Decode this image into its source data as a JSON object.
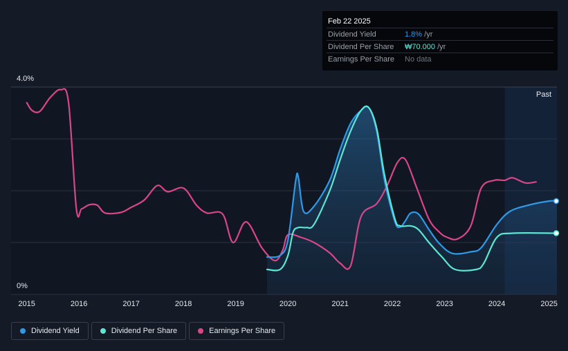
{
  "tooltip": {
    "date": "Feb 22 2025",
    "rows": [
      {
        "label": "Dividend Yield",
        "value": "1.8%",
        "unit": " /yr",
        "color": "#2f9ae8"
      },
      {
        "label": "Dividend Per Share",
        "value": "₩70.000",
        "unit": " /yr",
        "color": "#5ee6d3"
      },
      {
        "label": "Earnings Per Share",
        "value": "No data",
        "unit": "",
        "color": "#6f7680"
      }
    ]
  },
  "past_label": "Past",
  "legend": [
    {
      "label": "Dividend Yield",
      "color": "#2f9ae8"
    },
    {
      "label": "Dividend Per Share",
      "color": "#5ee6d3"
    },
    {
      "label": "Earnings Per Share",
      "color": "#d9468a"
    }
  ],
  "chart_data": {
    "type": "line",
    "ytick_labels": {
      "top": "4.0%",
      "bottom": "0%"
    },
    "ylim": [
      0,
      4.0
    ],
    "xlim": [
      2014.7,
      2025.15
    ],
    "x_ticks": [
      "2015",
      "2016",
      "2017",
      "2018",
      "2019",
      "2020",
      "2021",
      "2022",
      "2023",
      "2024",
      "2025"
    ],
    "past_start": 2024.15,
    "grid": true,
    "series": [
      {
        "name": "Dividend Yield",
        "color": "#2f9ae8",
        "filled": true,
        "points": [
          [
            2019.6,
            0.72
          ],
          [
            2019.85,
            0.75
          ],
          [
            2020.0,
            1.05
          ],
          [
            2020.15,
            2.2
          ],
          [
            2020.2,
            2.25
          ],
          [
            2020.3,
            1.6
          ],
          [
            2020.5,
            1.7
          ],
          [
            2020.8,
            2.2
          ],
          [
            2021.0,
            2.8
          ],
          [
            2021.2,
            3.3
          ],
          [
            2021.4,
            3.55
          ],
          [
            2021.55,
            3.6
          ],
          [
            2021.7,
            3.15
          ],
          [
            2021.85,
            2.2
          ],
          [
            2022.05,
            1.4
          ],
          [
            2022.15,
            1.3
          ],
          [
            2022.25,
            1.42
          ],
          [
            2022.35,
            1.57
          ],
          [
            2022.5,
            1.55
          ],
          [
            2022.7,
            1.25
          ],
          [
            2022.9,
            0.98
          ],
          [
            2023.15,
            0.79
          ],
          [
            2023.5,
            0.82
          ],
          [
            2023.7,
            0.9
          ],
          [
            2024.0,
            1.35
          ],
          [
            2024.25,
            1.6
          ],
          [
            2024.6,
            1.72
          ],
          [
            2025.0,
            1.8
          ],
          [
            2025.15,
            1.8
          ]
        ]
      },
      {
        "name": "Dividend Per Share",
        "color": "#5ee6d3",
        "filled": false,
        "points": [
          [
            2019.6,
            0.48
          ],
          [
            2019.85,
            0.48
          ],
          [
            2020.0,
            0.75
          ],
          [
            2020.1,
            1.2
          ],
          [
            2020.2,
            1.29
          ],
          [
            2020.35,
            1.29
          ],
          [
            2020.5,
            1.35
          ],
          [
            2020.8,
            2.0
          ],
          [
            2021.0,
            2.6
          ],
          [
            2021.2,
            3.15
          ],
          [
            2021.4,
            3.55
          ],
          [
            2021.55,
            3.6
          ],
          [
            2021.7,
            3.2
          ],
          [
            2021.85,
            2.3
          ],
          [
            2022.05,
            1.45
          ],
          [
            2022.15,
            1.32
          ],
          [
            2022.35,
            1.32
          ],
          [
            2022.5,
            1.25
          ],
          [
            2022.7,
            1.0
          ],
          [
            2022.95,
            0.72
          ],
          [
            2023.2,
            0.48
          ],
          [
            2023.6,
            0.48
          ],
          [
            2023.75,
            0.6
          ],
          [
            2024.0,
            1.1
          ],
          [
            2024.3,
            1.18
          ],
          [
            2025.15,
            1.18
          ]
        ]
      },
      {
        "name": "Earnings Per Share",
        "color": "#d9468a",
        "filled": false,
        "points": [
          [
            2015.0,
            3.7
          ],
          [
            2015.1,
            3.55
          ],
          [
            2015.25,
            3.53
          ],
          [
            2015.45,
            3.8
          ],
          [
            2015.65,
            3.95
          ],
          [
            2015.8,
            3.7
          ],
          [
            2015.95,
            1.65
          ],
          [
            2016.05,
            1.65
          ],
          [
            2016.2,
            1.73
          ],
          [
            2016.35,
            1.72
          ],
          [
            2016.5,
            1.57
          ],
          [
            2016.8,
            1.58
          ],
          [
            2017.0,
            1.68
          ],
          [
            2017.25,
            1.82
          ],
          [
            2017.5,
            2.1
          ],
          [
            2017.7,
            1.98
          ],
          [
            2018.0,
            2.05
          ],
          [
            2018.25,
            1.72
          ],
          [
            2018.45,
            1.57
          ],
          [
            2018.75,
            1.55
          ],
          [
            2018.95,
            1.0
          ],
          [
            2019.2,
            1.4
          ],
          [
            2019.5,
            0.9
          ],
          [
            2019.75,
            0.65
          ],
          [
            2019.9,
            0.85
          ],
          [
            2020.0,
            1.15
          ],
          [
            2020.25,
            1.1
          ],
          [
            2020.5,
            1.0
          ],
          [
            2020.8,
            0.8
          ],
          [
            2021.0,
            0.6
          ],
          [
            2021.2,
            0.55
          ],
          [
            2021.4,
            1.5
          ],
          [
            2021.7,
            1.75
          ],
          [
            2021.9,
            2.1
          ],
          [
            2022.1,
            2.55
          ],
          [
            2022.25,
            2.6
          ],
          [
            2022.45,
            2.1
          ],
          [
            2022.7,
            1.45
          ],
          [
            2022.9,
            1.2
          ],
          [
            2023.05,
            1.1
          ],
          [
            2023.25,
            1.07
          ],
          [
            2023.5,
            1.32
          ],
          [
            2023.7,
            2.05
          ],
          [
            2023.95,
            2.2
          ],
          [
            2024.15,
            2.2
          ],
          [
            2024.3,
            2.25
          ],
          [
            2024.55,
            2.15
          ],
          [
            2024.75,
            2.17
          ]
        ]
      }
    ]
  }
}
